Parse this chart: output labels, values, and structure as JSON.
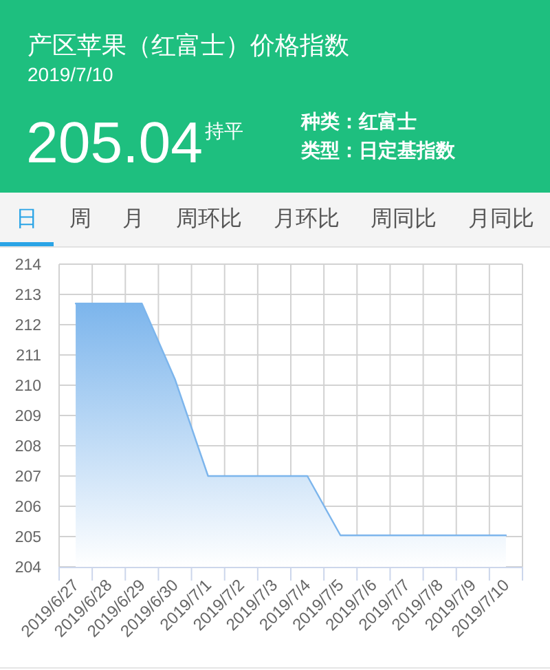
{
  "chart_data": {
    "type": "area",
    "title": "产区苹果（红富士）价格指数",
    "subtitle": "2019/7/10",
    "annotations": [
      "205.04",
      "持平",
      "种类：红富士",
      "类型：日定基指数",
      "日",
      "周",
      "月",
      "周环比",
      "月环比",
      "周同比",
      "月同比"
    ],
    "categories": [
      "2019/6/27",
      "2019/6/28",
      "2019/6/29",
      "2019/6/30",
      "2019/7/1",
      "2019/7/2",
      "2019/7/3",
      "2019/7/4",
      "2019/7/5",
      "2019/7/6",
      "2019/7/7",
      "2019/7/8",
      "2019/7/9",
      "2019/7/10"
    ],
    "values": [
      212.7,
      212.7,
      212.7,
      210.2,
      207.0,
      207.0,
      207.0,
      207.0,
      205.04,
      205.04,
      205.04,
      205.04,
      205.04,
      205.04
    ],
    "color": "#7cb5ec",
    "ylim": [
      204,
      214
    ],
    "yticks": [
      204,
      205,
      206,
      207,
      208,
      209,
      210,
      211,
      212,
      213,
      214
    ],
    "grid": true
  }
}
